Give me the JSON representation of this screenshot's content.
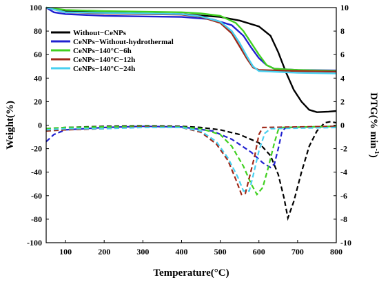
{
  "chart_data": {
    "type": "line",
    "xlabel": "Temperature(°C)",
    "ylabel_left": "Weight(%)",
    "ylabel_right_main": "DTG(% min",
    "ylabel_right_sup": "-1",
    "ylabel_right_close": ")",
    "xlim": [
      50,
      800
    ],
    "ylim_left": [
      -100,
      100
    ],
    "ylim_right": [
      -10,
      10
    ],
    "x_ticks": [
      100,
      200,
      300,
      400,
      500,
      600,
      700,
      800
    ],
    "y_ticks_left": [
      -100,
      -80,
      -60,
      -40,
      -20,
      0,
      20,
      40,
      60,
      80,
      100
    ],
    "y_ticks_right": [
      -10,
      -8,
      -6,
      -4,
      -2,
      0,
      2,
      4,
      6,
      8,
      10
    ],
    "legend_position": "upper-left",
    "series": [
      {
        "name": "Without−CeNPs",
        "color": "#000000",
        "tg": [
          [
            50,
            100
          ],
          [
            100,
            97
          ],
          [
            200,
            96
          ],
          [
            300,
            95
          ],
          [
            400,
            94.5
          ],
          [
            500,
            92
          ],
          [
            550,
            89
          ],
          [
            600,
            84
          ],
          [
            630,
            76
          ],
          [
            650,
            62
          ],
          [
            670,
            45
          ],
          [
            690,
            30
          ],
          [
            710,
            20
          ],
          [
            730,
            13
          ],
          [
            750,
            11
          ],
          [
            780,
            11.5
          ],
          [
            800,
            12
          ]
        ],
        "dtg": [
          [
            50,
            -0.3
          ],
          [
            100,
            -0.2
          ],
          [
            200,
            -0.1
          ],
          [
            300,
            -0.05
          ],
          [
            400,
            -0.1
          ],
          [
            450,
            -0.2
          ],
          [
            500,
            -0.4
          ],
          [
            550,
            -0.8
          ],
          [
            600,
            -1.5
          ],
          [
            630,
            -2.6
          ],
          [
            650,
            -4.2
          ],
          [
            665,
            -6.2
          ],
          [
            675,
            -7.9
          ],
          [
            690,
            -6.5
          ],
          [
            710,
            -4
          ],
          [
            730,
            -1.8
          ],
          [
            750,
            -0.5
          ],
          [
            770,
            0.2
          ],
          [
            785,
            0.3
          ],
          [
            800,
            0.2
          ]
        ]
      },
      {
        "name": "CeNPs−Without-hydrothermal",
        "color": "#2020d0",
        "tg": [
          [
            50,
            100
          ],
          [
            70,
            96
          ],
          [
            100,
            94.5
          ],
          [
            200,
            93
          ],
          [
            300,
            92.5
          ],
          [
            400,
            92
          ],
          [
            480,
            90
          ],
          [
            530,
            85
          ],
          [
            560,
            76
          ],
          [
            580,
            66
          ],
          [
            600,
            57
          ],
          [
            620,
            51
          ],
          [
            640,
            48
          ],
          [
            700,
            47
          ],
          [
            800,
            46.5
          ]
        ],
        "dtg": [
          [
            50,
            -1.4
          ],
          [
            70,
            -0.8
          ],
          [
            100,
            -0.4
          ],
          [
            200,
            -0.2
          ],
          [
            300,
            -0.1
          ],
          [
            400,
            -0.15
          ],
          [
            480,
            -0.5
          ],
          [
            530,
            -1.2
          ],
          [
            580,
            -2.3
          ],
          [
            610,
            -3.2
          ],
          [
            630,
            -3.6
          ],
          [
            640,
            -3.3
          ],
          [
            650,
            -2
          ],
          [
            660,
            -0.5
          ],
          [
            670,
            -0.2
          ],
          [
            800,
            -0.1
          ]
        ]
      },
      {
        "name": "CeNPs−140°C−6h",
        "color": "#40d020",
        "tg": [
          [
            50,
            100
          ],
          [
            100,
            98
          ],
          [
            200,
            97
          ],
          [
            300,
            96.5
          ],
          [
            400,
            96
          ],
          [
            450,
            95
          ],
          [
            500,
            93
          ],
          [
            540,
            87
          ],
          [
            560,
            80
          ],
          [
            580,
            70
          ],
          [
            600,
            60
          ],
          [
            620,
            51
          ],
          [
            640,
            48
          ],
          [
            700,
            47
          ],
          [
            800,
            46
          ]
        ],
        "dtg": [
          [
            50,
            -0.3
          ],
          [
            100,
            -0.2
          ],
          [
            200,
            -0.15
          ],
          [
            300,
            -0.1
          ],
          [
            400,
            -0.15
          ],
          [
            450,
            -0.3
          ],
          [
            500,
            -0.8
          ],
          [
            530,
            -1.8
          ],
          [
            560,
            -3.5
          ],
          [
            580,
            -5
          ],
          [
            595,
            -5.9
          ],
          [
            610,
            -5.3
          ],
          [
            625,
            -3.5
          ],
          [
            640,
            -1.5
          ],
          [
            650,
            -0.4
          ],
          [
            660,
            -0.2
          ],
          [
            800,
            -0.1
          ]
        ]
      },
      {
        "name": "CeNPs−140°C−12h",
        "color": "#a02818",
        "tg": [
          [
            50,
            100
          ],
          [
            100,
            96
          ],
          [
            200,
            95
          ],
          [
            300,
            94.5
          ],
          [
            400,
            94
          ],
          [
            450,
            92
          ],
          [
            500,
            87
          ],
          [
            530,
            78
          ],
          [
            550,
            67
          ],
          [
            570,
            56
          ],
          [
            585,
            49
          ],
          [
            600,
            47
          ],
          [
            700,
            46
          ],
          [
            800,
            45.5
          ]
        ],
        "dtg": [
          [
            50,
            -0.5
          ],
          [
            100,
            -0.4
          ],
          [
            200,
            -0.3
          ],
          [
            300,
            -0.15
          ],
          [
            400,
            -0.2
          ],
          [
            450,
            -0.6
          ],
          [
            490,
            -1.6
          ],
          [
            520,
            -3
          ],
          [
            540,
            -4.6
          ],
          [
            555,
            -5.9
          ],
          [
            565,
            -5.8
          ],
          [
            575,
            -4.5
          ],
          [
            590,
            -2.5
          ],
          [
            600,
            -0.8
          ],
          [
            610,
            -0.2
          ],
          [
            800,
            -0.1
          ]
        ]
      },
      {
        "name": "CeNPs−140°C−24h",
        "color": "#48d0f0",
        "tg": [
          [
            50,
            100
          ],
          [
            100,
            96
          ],
          [
            200,
            95.5
          ],
          [
            300,
            95
          ],
          [
            400,
            94.5
          ],
          [
            450,
            92.5
          ],
          [
            500,
            88
          ],
          [
            530,
            80
          ],
          [
            550,
            70
          ],
          [
            570,
            58
          ],
          [
            585,
            50
          ],
          [
            600,
            46
          ],
          [
            700,
            44.5
          ],
          [
            800,
            44
          ]
        ],
        "dtg": [
          [
            50,
            -0.4
          ],
          [
            100,
            -0.3
          ],
          [
            200,
            -0.3
          ],
          [
            300,
            -0.2
          ],
          [
            400,
            -0.2
          ],
          [
            450,
            -0.5
          ],
          [
            490,
            -1.4
          ],
          [
            520,
            -2.8
          ],
          [
            545,
            -4.4
          ],
          [
            560,
            -5.6
          ],
          [
            575,
            -5.6
          ],
          [
            585,
            -4.3
          ],
          [
            600,
            -2.2
          ],
          [
            615,
            -0.7
          ],
          [
            630,
            -0.3
          ],
          [
            800,
            -0.2
          ]
        ]
      }
    ]
  }
}
